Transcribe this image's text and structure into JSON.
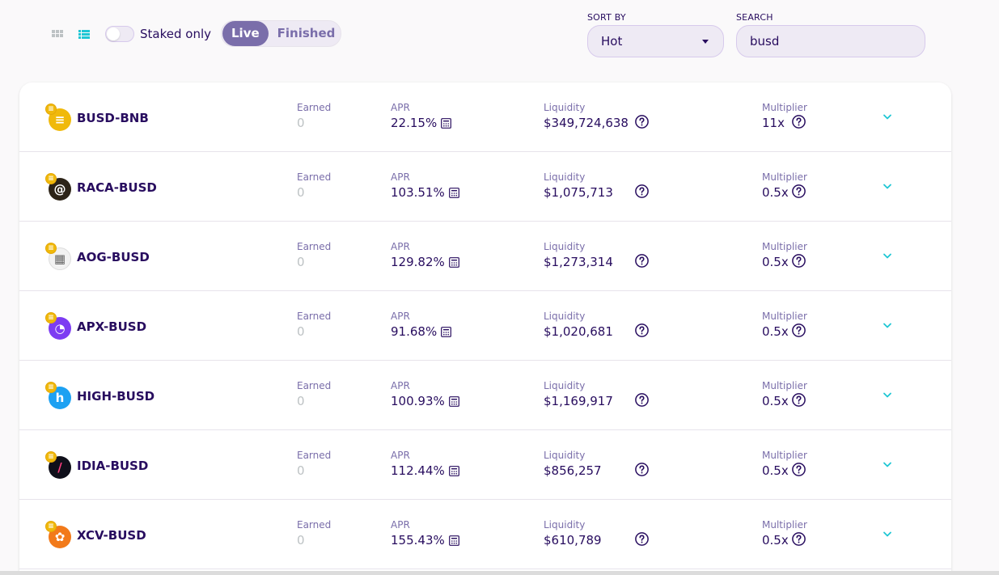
{
  "controls": {
    "view_icons": [
      "grid-view-icon",
      "list-view-icon"
    ],
    "staked_only_label": "Staked only",
    "tabs": [
      {
        "label": "Live",
        "active": true
      },
      {
        "label": "Finished",
        "active": false
      }
    ],
    "sort_by_label": "SORT BY",
    "sort_value": "Hot",
    "search_label": "SEARCH",
    "search_value": "busd"
  },
  "farms": [
    {
      "pair": "BUSD-BNB",
      "earned_label": "Earned",
      "earned": "0",
      "apr_label": "APR",
      "apr": "22.15%",
      "liquidity_label": "Liquidity",
      "liquidity": "$349,724,638",
      "multiplier_label": "Multiplier",
      "multiplier": "11x",
      "token_color": "#f0b90b",
      "token_icon": "busd-token-icon"
    },
    {
      "pair": "RACA-BUSD",
      "earned_label": "Earned",
      "earned": "0",
      "apr_label": "APR",
      "apr": "103.51%",
      "liquidity_label": "Liquidity",
      "liquidity": "$1,075,713",
      "multiplier_label": "Multiplier",
      "multiplier": "0.5x",
      "token_color": "#2d2418",
      "token_icon": "raca-token-icon"
    },
    {
      "pair": "AOG-BUSD",
      "earned_label": "Earned",
      "earned": "0",
      "apr_label": "APR",
      "apr": "129.82%",
      "liquidity_label": "Liquidity",
      "liquidity": "$1,273,314",
      "multiplier_label": "Multiplier",
      "multiplier": "0.5x",
      "token_color": "#f2f2f2",
      "token_icon": "aog-token-icon"
    },
    {
      "pair": "APX-BUSD",
      "earned_label": "Earned",
      "earned": "0",
      "apr_label": "APR",
      "apr": "91.68%",
      "liquidity_label": "Liquidity",
      "liquidity": "$1,020,681",
      "multiplier_label": "Multiplier",
      "multiplier": "0.5x",
      "token_color": "#7d3cf2",
      "token_icon": "apx-token-icon"
    },
    {
      "pair": "HIGH-BUSD",
      "earned_label": "Earned",
      "earned": "0",
      "apr_label": "APR",
      "apr": "100.93%",
      "liquidity_label": "Liquidity",
      "liquidity": "$1,169,917",
      "multiplier_label": "Multiplier",
      "multiplier": "0.5x",
      "token_color": "#1da1f2",
      "token_icon": "high-token-icon"
    },
    {
      "pair": "IDIA-BUSD",
      "earned_label": "Earned",
      "earned": "0",
      "apr_label": "APR",
      "apr": "112.44%",
      "liquidity_label": "Liquidity",
      "liquidity": "$856,257",
      "multiplier_label": "Multiplier",
      "multiplier": "0.5x",
      "token_color": "#0f0f1a",
      "token_icon": "idia-token-icon"
    },
    {
      "pair": "XCV-BUSD",
      "earned_label": "Earned",
      "earned": "0",
      "apr_label": "APR",
      "apr": "155.43%",
      "liquidity_label": "Liquidity",
      "liquidity": "$610,789",
      "multiplier_label": "Multiplier",
      "multiplier": "0.5x",
      "token_color": "#f27a1a",
      "token_icon": "xcv-token-icon"
    }
  ],
  "colors": {
    "accent": "#1fc7d4",
    "primary_text": "#280d5f",
    "secondary_text": "#7a6eaa",
    "disabled": "#bdc2c4",
    "tab_active": "#7a6eaa"
  }
}
